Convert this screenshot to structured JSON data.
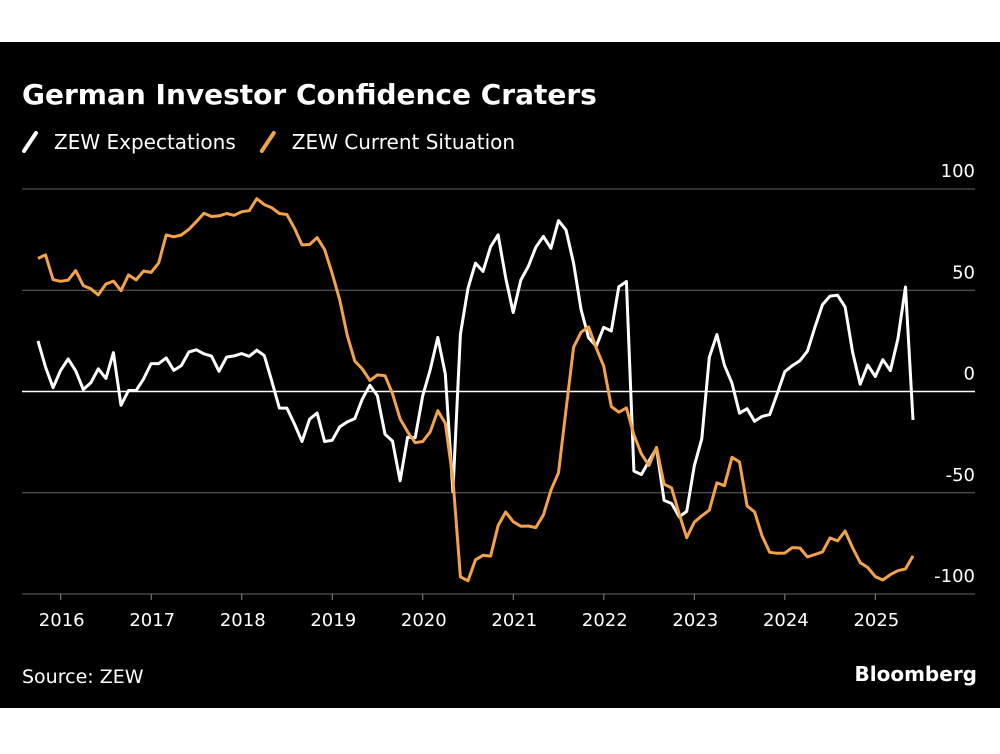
{
  "chart_data": {
    "type": "line",
    "title": "German Investor Confidence Craters",
    "source": "Source: ZEW",
    "brand": "Bloomberg",
    "categories": [
      null,
      null,
      null,
      null,
      null,
      "2016",
      null,
      null,
      null,
      null,
      null,
      null,
      null,
      null,
      null,
      null,
      null,
      "2017",
      null,
      null,
      null,
      null,
      null,
      null,
      null,
      null,
      null,
      null,
      null,
      "2018",
      null,
      null,
      null,
      null,
      null,
      null,
      null,
      null,
      null,
      null,
      null,
      "2019",
      null,
      null,
      null,
      null,
      null,
      null,
      null,
      null,
      null,
      null,
      null,
      "2020",
      null,
      null,
      null,
      null,
      null,
      null,
      null,
      null,
      null,
      null,
      null,
      "2021",
      null,
      null,
      null,
      null,
      null,
      null,
      null,
      null,
      null,
      null,
      null,
      "2022",
      null,
      null,
      null,
      null,
      null,
      null,
      null,
      null,
      null,
      null,
      null,
      "2023",
      null,
      null,
      null,
      null,
      null,
      null,
      null,
      null,
      null,
      null,
      null,
      "2024",
      null,
      null,
      null,
      null,
      null,
      null,
      null,
      null,
      null,
      null,
      null,
      "2025",
      null,
      null,
      null
    ],
    "series": [
      {
        "name": "ZEW Expectations",
        "color": "#ffffff",
        "values": [
          25.0,
          12.1,
          1.9,
          10.4,
          16.1,
          10.2,
          1.0,
          4.3,
          11.2,
          6.4,
          19.2,
          -6.8,
          0.5,
          0.5,
          6.2,
          13.8,
          13.8,
          16.6,
          10.4,
          12.8,
          19.5,
          20.6,
          18.6,
          17.5,
          10.0,
          17.0,
          17.6,
          18.7,
          17.4,
          20.4,
          17.8,
          5.1,
          -8.2,
          -8.2,
          -16.1,
          -24.7,
          -13.7,
          -10.6,
          -24.7,
          -24.1,
          -17.5,
          -15.0,
          -13.4,
          -3.6,
          3.1,
          -2.1,
          -21.1,
          -24.5,
          -44.1,
          -22.5,
          -22.8,
          -2.1,
          10.7,
          26.7,
          8.7,
          -49.5,
          28.2,
          51.0,
          63.4,
          59.3,
          71.5,
          77.4,
          56.1,
          39.0,
          55.0,
          61.8,
          71.2,
          76.6,
          70.7,
          84.4,
          79.8,
          63.3,
          40.4,
          26.5,
          22.3,
          31.7,
          29.9,
          51.7,
          54.3,
          -39.3,
          -41.0,
          -34.3,
          -28.0,
          -53.8,
          -55.3,
          -61.9,
          -59.2,
          -36.7,
          -23.3,
          16.9,
          28.1,
          13.0,
          4.1,
          -10.7,
          -8.5,
          -14.7,
          -12.3,
          -11.4,
          -1.1,
          9.8,
          12.8,
          15.2,
          19.9,
          31.7,
          42.9,
          47.1,
          47.5,
          41.8,
          19.2,
          3.6,
          13.1,
          7.4,
          15.7,
          10.3,
          26.0,
          51.6,
          -14.0
        ]
      },
      {
        "name": "ZEW Current Situation",
        "color": "#f4a24a",
        "values": [
          65.7,
          67.5,
          55.2,
          54.4,
          55.0,
          59.7,
          52.3,
          50.7,
          47.7,
          53.1,
          54.5,
          49.8,
          57.6,
          55.1,
          59.5,
          58.8,
          63.5,
          77.3,
          76.4,
          77.3,
          80.1,
          83.9,
          88.0,
          86.4,
          86.7,
          87.9,
          87.0,
          88.8,
          89.3,
          95.2,
          92.3,
          90.7,
          87.9,
          87.4,
          80.6,
          72.4,
          72.6,
          76.0,
          70.1,
          58.2,
          45.3,
          27.6,
          15.0,
          11.1,
          5.5,
          8.2,
          7.8,
          -1.1,
          -13.5,
          -19.9,
          -25.3,
          -24.7,
          -19.9,
          -9.5,
          -15.7,
          -43.1,
          -91.5,
          -93.5,
          -83.1,
          -80.9,
          -81.3,
          -66.2,
          -59.5,
          -64.3,
          -66.5,
          -66.4,
          -67.2,
          -61.0,
          -48.8,
          -40.1,
          -9.1,
          21.9,
          29.3,
          31.9,
          21.6,
          12.5,
          -7.4,
          -10.2,
          -8.1,
          -21.4,
          -30.8,
          -36.5,
          -27.6,
          -45.8,
          -47.6,
          -60.5,
          -72.2,
          -64.5,
          -61.4,
          -58.6,
          -45.1,
          -46.5,
          -32.5,
          -34.8,
          -56.5,
          -59.5,
          -71.3,
          -79.4,
          -79.9,
          -79.8,
          -77.1,
          -77.3,
          -81.7,
          -80.5,
          -79.2,
          -72.3,
          -73.8,
          -68.9,
          -77.3,
          -84.5,
          -86.9,
          -91.4,
          -93.1,
          -90.4,
          -88.5,
          -87.6,
          -81.2
        ]
      }
    ],
    "ylim": [
      -100,
      100
    ],
    "yticks": [
      -100,
      -50,
      0,
      50,
      100
    ],
    "grid": true
  }
}
